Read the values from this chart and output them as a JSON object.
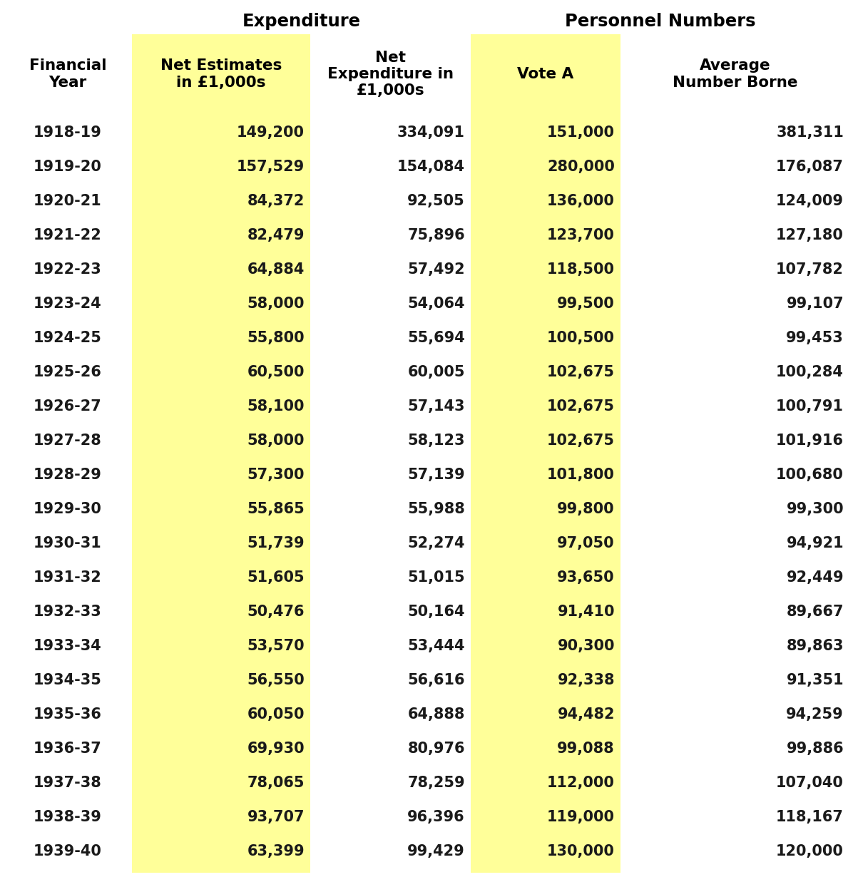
{
  "title_expenditure": "Expenditure",
  "title_personnel": "Personnel Numbers",
  "col_headers": [
    "Financial\nYear",
    "Net Estimates\nin £1,000s",
    "Net\nExpenditure in\n£1,000s",
    "Vote A",
    "Average\nNumber Borne"
  ],
  "rows": [
    [
      "1918-19",
      "149,200",
      "334,091",
      "151,000",
      "381,311"
    ],
    [
      "1919-20",
      "157,529",
      "154,084",
      "280,000",
      "176,087"
    ],
    [
      "1920-21",
      "84,372",
      "92,505",
      "136,000",
      "124,009"
    ],
    [
      "1921-22",
      "82,479",
      "75,896",
      "123,700",
      "127,180"
    ],
    [
      "1922-23",
      "64,884",
      "57,492",
      "118,500",
      "107,782"
    ],
    [
      "1923-24",
      "58,000",
      "54,064",
      "99,500",
      "99,107"
    ],
    [
      "1924-25",
      "55,800",
      "55,694",
      "100,500",
      "99,453"
    ],
    [
      "1925-26",
      "60,500",
      "60,005",
      "102,675",
      "100,284"
    ],
    [
      "1926-27",
      "58,100",
      "57,143",
      "102,675",
      "100,791"
    ],
    [
      "1927-28",
      "58,000",
      "58,123",
      "102,675",
      "101,916"
    ],
    [
      "1928-29",
      "57,300",
      "57,139",
      "101,800",
      "100,680"
    ],
    [
      "1929-30",
      "55,865",
      "55,988",
      "99,800",
      "99,300"
    ],
    [
      "1930-31",
      "51,739",
      "52,274",
      "97,050",
      "94,921"
    ],
    [
      "1931-32",
      "51,605",
      "51,015",
      "93,650",
      "92,449"
    ],
    [
      "1932-33",
      "50,476",
      "50,164",
      "91,410",
      "89,667"
    ],
    [
      "1933-34",
      "53,570",
      "53,444",
      "90,300",
      "89,863"
    ],
    [
      "1934-35",
      "56,550",
      "56,616",
      "92,338",
      "91,351"
    ],
    [
      "1935-36",
      "60,050",
      "64,888",
      "94,482",
      "94,259"
    ],
    [
      "1936-37",
      "69,930",
      "80,976",
      "99,088",
      "99,886"
    ],
    [
      "1937-38",
      "78,065",
      "78,259",
      "112,000",
      "107,040"
    ],
    [
      "1938-39",
      "93,707",
      "96,396",
      "119,000",
      "118,167"
    ],
    [
      "1939-40",
      "63,399",
      "99,429",
      "130,000",
      "120,000"
    ]
  ],
  "yellow_color": "#FFFF99",
  "bg_color": "#FFFFFF",
  "text_color": "#1a1a1a",
  "header_color": "#000000",
  "font_size_data": 15.0,
  "font_size_header": 15.5,
  "font_size_title": 17.5
}
